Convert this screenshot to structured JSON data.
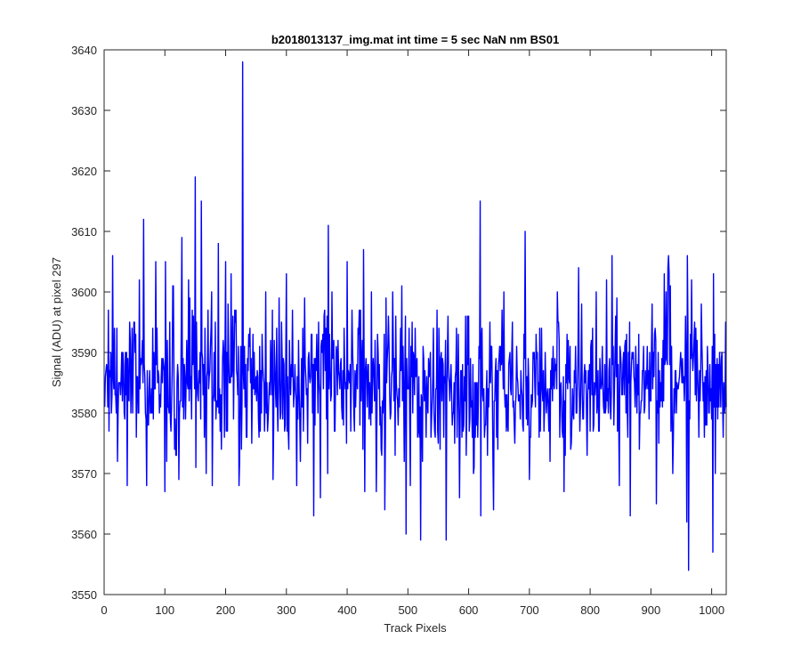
{
  "chart_data": {
    "type": "line",
    "title": "b2018013137_img.mat int time = 5 sec  NaN nm BS01",
    "xlabel": "Track Pixels",
    "ylabel": "Signal (ADU) at pixel 297",
    "xlim": [
      0,
      1024
    ],
    "ylim": [
      3550,
      3640
    ],
    "x_ticks": [
      0,
      100,
      200,
      300,
      400,
      500,
      600,
      700,
      800,
      900,
      1000
    ],
    "y_ticks": [
      3550,
      3560,
      3570,
      3580,
      3590,
      3600,
      3610,
      3620,
      3630,
      3640
    ],
    "grid": false,
    "line_color": "#0000ff",
    "series": [
      {
        "x_start": 1,
        "x_step": 1,
        "noise_model": {
          "seed": 20180131,
          "mean": 3585,
          "sd": 6,
          "min": 3563,
          "max": 3611
        },
        "peaks": [
          {
            "x": 7,
            "y": 3597
          },
          {
            "x": 14,
            "y": 3606
          },
          {
            "x": 38,
            "y": 3568
          },
          {
            "x": 52,
            "y": 3593
          },
          {
            "x": 58,
            "y": 3602
          },
          {
            "x": 65,
            "y": 3567
          },
          {
            "x": 65,
            "y": 3612
          },
          {
            "x": 70,
            "y": 3568
          },
          {
            "x": 85,
            "y": 3605
          },
          {
            "x": 100,
            "y": 3567
          },
          {
            "x": 101,
            "y": 3605
          },
          {
            "x": 103,
            "y": 3572
          },
          {
            "x": 118,
            "y": 3573
          },
          {
            "x": 123,
            "y": 3569
          },
          {
            "x": 128,
            "y": 3609
          },
          {
            "x": 139,
            "y": 3602
          },
          {
            "x": 150,
            "y": 3619
          },
          {
            "x": 151,
            "y": 3571
          },
          {
            "x": 160,
            "y": 3615
          },
          {
            "x": 168,
            "y": 3570
          },
          {
            "x": 175,
            "y": 3591
          },
          {
            "x": 178,
            "y": 3568
          },
          {
            "x": 181,
            "y": 3590
          },
          {
            "x": 188,
            "y": 3608
          },
          {
            "x": 200,
            "y": 3605
          },
          {
            "x": 222,
            "y": 3568
          },
          {
            "x": 228,
            "y": 3638
          },
          {
            "x": 231,
            "y": 3591
          },
          {
            "x": 255,
            "y": 3576
          },
          {
            "x": 266,
            "y": 3600
          },
          {
            "x": 278,
            "y": 3569
          },
          {
            "x": 300,
            "y": 3603
          },
          {
            "x": 317,
            "y": 3568
          },
          {
            "x": 330,
            "y": 3599
          },
          {
            "x": 345,
            "y": 3563
          },
          {
            "x": 356,
            "y": 3566
          },
          {
            "x": 369,
            "y": 3611
          },
          {
            "x": 375,
            "y": 3600
          },
          {
            "x": 400,
            "y": 3605
          },
          {
            "x": 412,
            "y": 3577
          },
          {
            "x": 427,
            "y": 3607
          },
          {
            "x": 440,
            "y": 3600
          },
          {
            "x": 448,
            "y": 3567
          },
          {
            "x": 462,
            "y": 3564
          },
          {
            "x": 475,
            "y": 3600
          },
          {
            "x": 490,
            "y": 3601
          },
          {
            "x": 497,
            "y": 3560
          },
          {
            "x": 504,
            "y": 3568
          },
          {
            "x": 521,
            "y": 3559
          },
          {
            "x": 548,
            "y": 3597
          },
          {
            "x": 563,
            "y": 3559
          },
          {
            "x": 585,
            "y": 3566
          },
          {
            "x": 608,
            "y": 3570
          },
          {
            "x": 619,
            "y": 3615
          },
          {
            "x": 620,
            "y": 3563
          },
          {
            "x": 641,
            "y": 3564
          },
          {
            "x": 658,
            "y": 3600
          },
          {
            "x": 672,
            "y": 3595
          },
          {
            "x": 693,
            "y": 3610
          },
          {
            "x": 700,
            "y": 3569
          },
          {
            "x": 717,
            "y": 3594
          },
          {
            "x": 746,
            "y": 3600
          },
          {
            "x": 757,
            "y": 3567
          },
          {
            "x": 781,
            "y": 3604
          },
          {
            "x": 795,
            "y": 3573
          },
          {
            "x": 810,
            "y": 3600
          },
          {
            "x": 833,
            "y": 3581
          },
          {
            "x": 836,
            "y": 3606
          },
          {
            "x": 866,
            "y": 3563
          },
          {
            "x": 880,
            "y": 3593
          },
          {
            "x": 909,
            "y": 3565
          },
          {
            "x": 914,
            "y": 3587
          },
          {
            "x": 922,
            "y": 3603
          },
          {
            "x": 928,
            "y": 3604
          },
          {
            "x": 932,
            "y": 3601
          },
          {
            "x": 959,
            "y": 3562
          },
          {
            "x": 960,
            "y": 3606
          },
          {
            "x": 962,
            "y": 3554
          },
          {
            "x": 983,
            "y": 3598
          },
          {
            "x": 1002,
            "y": 3557
          },
          {
            "x": 1003,
            "y": 3603
          },
          {
            "x": 1013,
            "y": 3590
          },
          {
            "x": 1017,
            "y": 3590
          },
          {
            "x": 1023,
            "y": 3595
          },
          {
            "x": 1024,
            "y": 3581
          }
        ]
      }
    ]
  }
}
